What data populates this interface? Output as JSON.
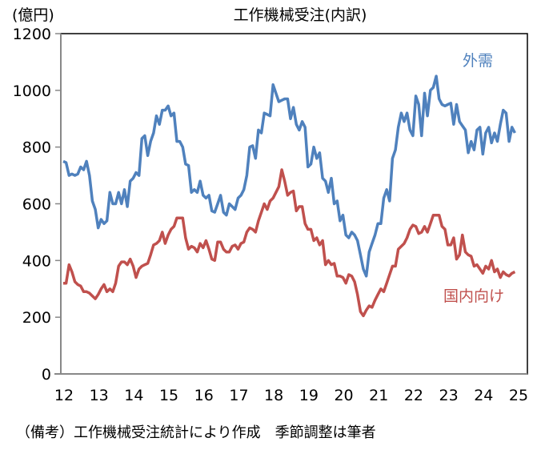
{
  "chart_data": {
    "type": "line",
    "title": "工作機械受注(内訳)",
    "ylabel": "(億円)",
    "xlabel": "",
    "ylim": [
      0,
      1200
    ],
    "yticks": [
      0,
      200,
      400,
      600,
      800,
      1000,
      1200
    ],
    "xticks": [
      "12",
      "13",
      "14",
      "15",
      "16",
      "17",
      "18",
      "19",
      "20",
      "21",
      "22",
      "23",
      "24",
      "25"
    ],
    "x_start": "2012-01",
    "frequency": "monthly",
    "grid": false,
    "legend": "inline labels",
    "series": [
      {
        "name": "外需",
        "color": "#4f81bd",
        "values": [
          750,
          745,
          700,
          705,
          700,
          705,
          730,
          720,
          750,
          700,
          610,
          580,
          515,
          545,
          530,
          540,
          640,
          600,
          600,
          640,
          600,
          650,
          590,
          680,
          690,
          710,
          700,
          830,
          840,
          770,
          820,
          850,
          910,
          880,
          930,
          930,
          945,
          910,
          920,
          820,
          820,
          800,
          740,
          735,
          640,
          650,
          640,
          680,
          630,
          620,
          630,
          575,
          570,
          600,
          630,
          570,
          560,
          600,
          590,
          580,
          620,
          630,
          650,
          700,
          800,
          805,
          760,
          860,
          850,
          920,
          915,
          910,
          1020,
          990,
          960,
          965,
          970,
          970,
          900,
          940,
          880,
          860,
          890,
          870,
          730,
          740,
          800,
          760,
          780,
          690,
          680,
          640,
          690,
          600,
          610,
          540,
          560,
          490,
          480,
          500,
          490,
          470,
          420,
          370,
          345,
          430,
          460,
          490,
          530,
          530,
          620,
          650,
          610,
          760,
          790,
          870,
          920,
          890,
          920,
          860,
          840,
          980,
          950,
          840,
          990,
          910,
          1000,
          1010,
          1050,
          970,
          950,
          945,
          950,
          955,
          880,
          950,
          890,
          875,
          860,
          780,
          820,
          790,
          860,
          870,
          775,
          850,
          870,
          815,
          850,
          820,
          880,
          930,
          920,
          820,
          870,
          850
        ]
      },
      {
        "name": "国内向け",
        "color": "#c0504d",
        "values": [
          320,
          320,
          385,
          360,
          325,
          315,
          310,
          290,
          290,
          285,
          275,
          265,
          280,
          300,
          315,
          290,
          300,
          290,
          320,
          380,
          395,
          395,
          385,
          405,
          380,
          340,
          370,
          380,
          385,
          390,
          420,
          455,
          460,
          470,
          500,
          460,
          490,
          510,
          520,
          550,
          550,
          550,
          480,
          440,
          450,
          445,
          430,
          460,
          445,
          470,
          440,
          405,
          400,
          465,
          465,
          440,
          430,
          430,
          450,
          455,
          440,
          460,
          465,
          500,
          515,
          510,
          500,
          540,
          570,
          600,
          580,
          610,
          620,
          640,
          660,
          720,
          680,
          630,
          640,
          645,
          575,
          590,
          590,
          530,
          510,
          510,
          470,
          480,
          455,
          470,
          385,
          400,
          385,
          390,
          345,
          345,
          340,
          320,
          350,
          345,
          325,
          280,
          220,
          205,
          225,
          240,
          235,
          260,
          280,
          300,
          290,
          320,
          350,
          380,
          380,
          440,
          450,
          460,
          480,
          510,
          525,
          520,
          495,
          500,
          520,
          500,
          530,
          560,
          560,
          560,
          520,
          510,
          455,
          455,
          480,
          405,
          420,
          490,
          430,
          420,
          415,
          380,
          385,
          370,
          355,
          380,
          370,
          400,
          360,
          370,
          340,
          360,
          350,
          345,
          355,
          360
        ]
      }
    ]
  },
  "note": "（備考）工作機械受注統計により作成　季節調整は筆者"
}
